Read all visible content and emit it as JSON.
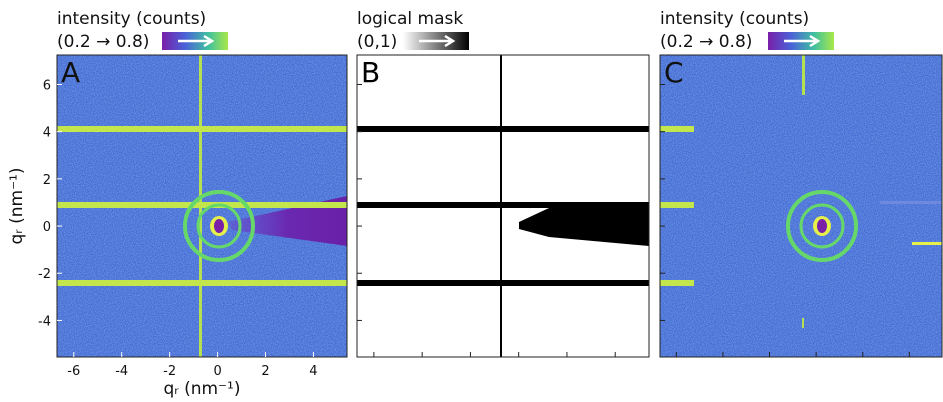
{
  "chart_data": [
    {
      "type": "image",
      "panel_label": "A",
      "colorbar_title": "intensity (counts)",
      "colorbar_range": "(0.2 → 0.8)",
      "x_label": "qᵣ (nm⁻¹)",
      "y_label": "qᵣ (nm⁻¹)",
      "xlim": [
        -6.7,
        5.4
      ],
      "ylim": [
        -5.55,
        7.25
      ],
      "xticks": [
        -6,
        -4,
        -2,
        0,
        2,
        4
      ],
      "yticks": [
        -4,
        -2,
        0,
        2,
        4,
        6
      ]
    },
    {
      "type": "image",
      "panel_label": "B",
      "colorbar_title": "logical mask",
      "colorbar_range": "(0,1)"
    },
    {
      "type": "image",
      "panel_label": "C",
      "colorbar_title": "intensity (counts)",
      "colorbar_range": "(0.2 → 0.8)"
    }
  ]
}
